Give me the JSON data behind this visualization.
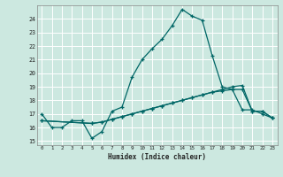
{
  "title": "",
  "xlabel": "Humidex (Indice chaleur)",
  "ylabel": "",
  "bg_color": "#cce8e0",
  "grid_color": "#ffffff",
  "line_color": "#006666",
  "x_ticks": [
    0,
    1,
    2,
    3,
    4,
    5,
    6,
    7,
    8,
    9,
    10,
    11,
    12,
    13,
    14,
    15,
    16,
    17,
    18,
    19,
    20,
    21,
    22,
    23
  ],
  "y_ticks": [
    15,
    16,
    17,
    18,
    19,
    20,
    21,
    22,
    23,
    24
  ],
  "xlim": [
    -0.5,
    23.5
  ],
  "ylim": [
    14.7,
    25.0
  ],
  "line1_x": [
    0,
    1,
    2,
    3,
    4,
    5,
    6,
    7,
    8,
    9,
    10,
    11,
    12,
    13,
    14,
    15,
    16,
    17,
    18,
    19,
    20,
    21,
    22,
    23
  ],
  "line1_y": [
    17.0,
    16.0,
    16.0,
    16.5,
    16.5,
    15.2,
    15.7,
    17.2,
    17.5,
    19.7,
    21.0,
    21.8,
    22.5,
    23.5,
    24.7,
    24.2,
    23.9,
    21.3,
    19.0,
    18.8,
    17.3,
    17.3,
    17.0,
    16.7
  ],
  "line2_x": [
    0,
    5,
    6,
    7,
    8,
    9,
    10,
    11,
    12,
    13,
    14,
    15,
    16,
    17,
    18,
    19,
    20,
    21,
    22,
    23
  ],
  "line2_y": [
    16.5,
    16.3,
    16.4,
    16.6,
    16.8,
    17.0,
    17.2,
    17.4,
    17.6,
    17.8,
    18.0,
    18.2,
    18.4,
    18.6,
    18.7,
    18.8,
    18.8,
    17.2,
    17.2,
    16.7
  ],
  "line3_x": [
    0,
    5,
    6,
    7,
    8,
    9,
    10,
    11,
    12,
    13,
    14,
    15,
    16,
    17,
    18,
    19,
    20,
    21,
    22,
    23
  ],
  "line3_y": [
    16.5,
    16.3,
    16.4,
    16.6,
    16.8,
    17.0,
    17.2,
    17.4,
    17.6,
    17.8,
    18.0,
    18.2,
    18.4,
    18.6,
    18.8,
    19.0,
    19.1,
    17.2,
    17.2,
    16.7
  ]
}
